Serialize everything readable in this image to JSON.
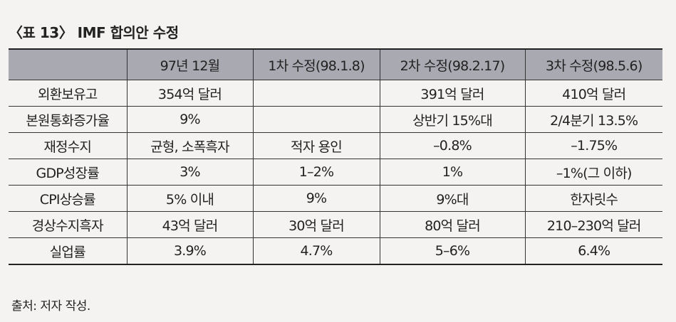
{
  "title": "〈표 13〉 IMF 합의안 수정",
  "table": {
    "columns": [
      "97년 12월",
      "1차 수정(98.1.8)",
      "2차 수정(98.2.17)",
      "3차 수정(98.5.6)"
    ],
    "rows": [
      {
        "label": "외환보유고",
        "cells": [
          "354억 달러",
          null,
          "391억 달러",
          "410억 달러"
        ]
      },
      {
        "label": "본원통화증가율",
        "cells": [
          "9%",
          null,
          "상반기 15%대",
          "2/4분기 13.5%"
        ]
      },
      {
        "label": "재정수지",
        "cells": [
          "균형, 소폭흑자",
          "적자 용인",
          "–0.8%",
          "–1.75%"
        ]
      },
      {
        "label": "GDP성장률",
        "cells": [
          "3%",
          "1–2%",
          "1%",
          "–1%(그 이하)"
        ]
      },
      {
        "label": "CPI상승률",
        "cells": [
          "5% 이내",
          "9%",
          "9%대",
          "한자릿수"
        ]
      },
      {
        "label": "경상수지흑자",
        "cells": [
          "43억 달러",
          "30억 달러",
          "80억 달러",
          "210–230억 달러"
        ]
      },
      {
        "label": "실업률",
        "cells": [
          "3.9%",
          "4.7%",
          "5–6%",
          "6.4%"
        ]
      }
    ]
  },
  "source": "출처: 저자 작성."
}
